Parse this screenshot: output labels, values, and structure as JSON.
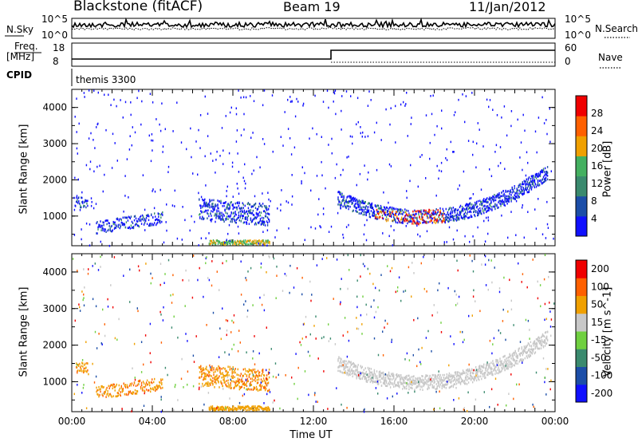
{
  "header": {
    "title": "Blackstone (fitACF)",
    "beam": "Beam 19",
    "date": "11/Jan/2012"
  },
  "top_panel": {
    "left_label": "N.Sky",
    "right_label": "N.Search",
    "ticks_left": [
      "10^5",
      "10^0"
    ],
    "ticks_right": [
      "10^5",
      "10^0"
    ]
  },
  "freq_panel": {
    "left_label_1": "Freq.",
    "left_label_2": "[MHz]",
    "right_label": "Nave",
    "ticks_left": [
      "18",
      "8"
    ],
    "ticks_right": [
      "60",
      "0"
    ]
  },
  "cpid_panel": {
    "label": "CPID",
    "value": "themis 3300"
  },
  "chart_data": [
    {
      "type": "heatmap",
      "title": "",
      "xlabel": "",
      "ylabel": "Slant Range [km]",
      "xlim": [
        0,
        24
      ],
      "ylim": [
        180,
        4500
      ],
      "y_ticks": [
        1000,
        2000,
        3000,
        4000
      ],
      "colorbar": {
        "label": "Power [dB]",
        "ticks": [
          "4",
          "8",
          "12",
          "16",
          "20",
          "24",
          "28"
        ],
        "colors": [
          "#1010ff",
          "#1c4ea8",
          "#3a8a6e",
          "#44b060",
          "#f0a000",
          "#ff6000",
          "#f00000"
        ]
      }
    },
    {
      "type": "heatmap",
      "title": "",
      "xlabel": "Time UT",
      "ylabel": "Slant Range [km]",
      "xlim": [
        0,
        24
      ],
      "ylim": [
        180,
        4500
      ],
      "x_ticks": [
        "00:00",
        "04:00",
        "08:00",
        "12:00",
        "16:00",
        "20:00",
        "00:00"
      ],
      "y_ticks": [
        1000,
        2000,
        3000,
        4000
      ],
      "colorbar": {
        "label": "Velocity [m s^-1]",
        "ticks": [
          "200",
          "100",
          "50",
          "15",
          "-15",
          "-50",
          "-100",
          "-200"
        ],
        "colors": [
          "#1010ff",
          "#1c4ea8",
          "#3a8a6e",
          "#70d040",
          "#c8c8c8",
          "#f0a000",
          "#ff6000",
          "#f00000"
        ]
      }
    }
  ]
}
